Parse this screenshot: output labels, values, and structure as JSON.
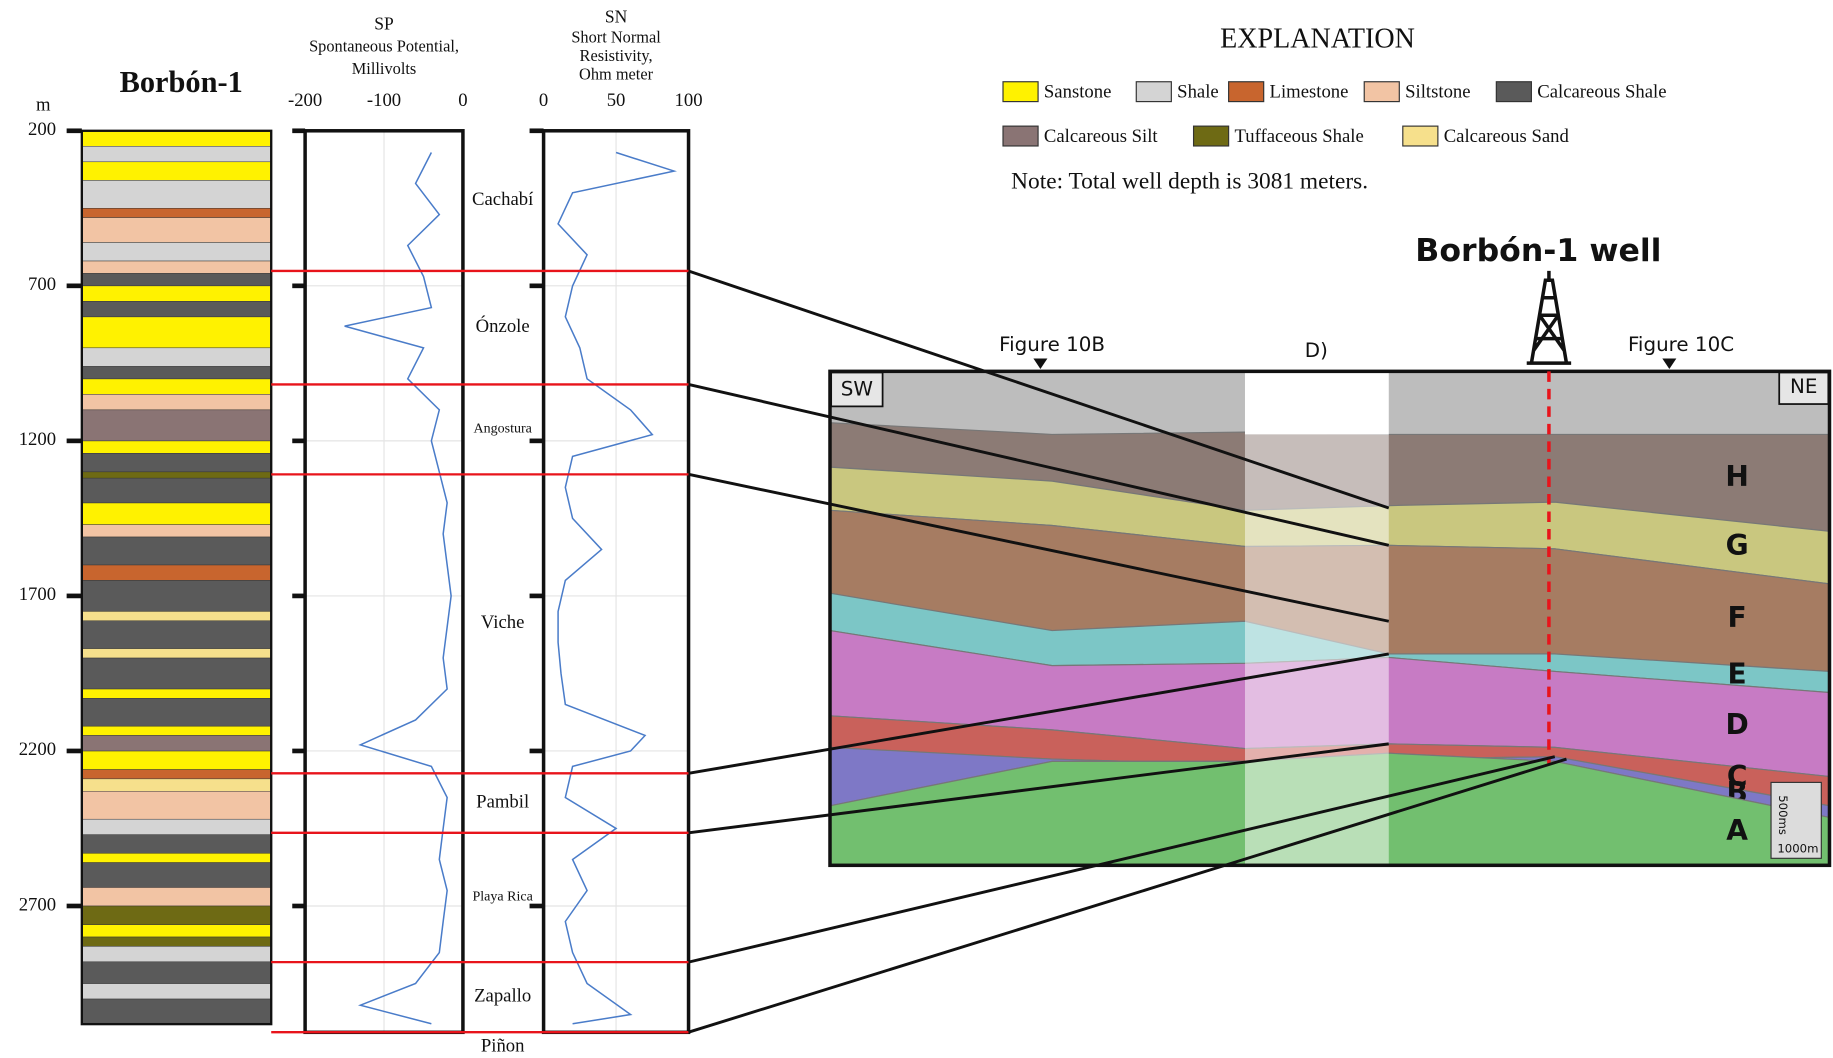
{
  "well_log": {
    "title": "Borbón-1",
    "depth_unit": "m",
    "depth_lim": [
      200,
      3081
    ],
    "depth_ticks": [
      200,
      700,
      1200,
      1700,
      2200,
      2700
    ],
    "lithology": [
      {
        "name": "Sanstone",
        "color": "#fff200",
        "layers": [
          [
            200,
            250
          ],
          [
            300,
            360
          ],
          [
            700,
            750
          ],
          [
            800,
            900
          ],
          [
            1000,
            1050
          ],
          [
            1200,
            1240
          ],
          [
            1400,
            1470
          ],
          [
            2000,
            2030
          ],
          [
            2120,
            2150
          ],
          [
            2200,
            2260
          ],
          [
            2530,
            2560
          ],
          [
            2760,
            2800
          ]
        ]
      },
      {
        "name": "Shale",
        "color": "#d4d4d4",
        "layers": [
          [
            250,
            300
          ],
          [
            360,
            450
          ],
          [
            560,
            620
          ],
          [
            900,
            960
          ],
          [
            2420,
            2470
          ],
          [
            2830,
            2880
          ],
          [
            2950,
            3000
          ]
        ]
      },
      {
        "name": "Limestone",
        "color": "#c8652e",
        "layers": [
          [
            450,
            480
          ],
          [
            1600,
            1650
          ],
          [
            2260,
            2290
          ]
        ]
      },
      {
        "name": "Siltstone",
        "color": "#f2c4a4",
        "layers": [
          [
            480,
            560
          ],
          [
            620,
            660
          ],
          [
            1050,
            1100
          ],
          [
            1470,
            1510
          ],
          [
            2330,
            2420
          ],
          [
            2640,
            2700
          ]
        ]
      },
      {
        "name": "Calcareous Shale",
        "color": "#5a5a5a",
        "layers": [
          [
            660,
            700
          ],
          [
            750,
            800
          ],
          [
            960,
            1000
          ],
          [
            1240,
            1300
          ],
          [
            1320,
            1400
          ],
          [
            1510,
            1600
          ],
          [
            1650,
            1750
          ],
          [
            1780,
            1870
          ],
          [
            1900,
            2000
          ],
          [
            2030,
            2120
          ],
          [
            2470,
            2530
          ],
          [
            2560,
            2640
          ],
          [
            2880,
            2950
          ],
          [
            3000,
            3081
          ]
        ]
      },
      {
        "name": "Calcareous Silt",
        "color": "#8a7474",
        "layers": [
          [
            1100,
            1200
          ],
          [
            2150,
            2200
          ]
        ]
      },
      {
        "name": "Tuffaceous Shale",
        "color": "#6e6a14",
        "layers": [
          [
            1300,
            1320
          ],
          [
            2700,
            2760
          ],
          [
            2800,
            2830
          ]
        ]
      },
      {
        "name": "Calcareous Sand",
        "color": "#f6e08c",
        "layers": [
          [
            1750,
            1780
          ],
          [
            1870,
            1900
          ],
          [
            2290,
            2330
          ]
        ]
      }
    ],
    "sp": {
      "title": "SP",
      "subtitle": [
        "Spontaneous Potential,",
        "Millivolts"
      ],
      "xlim": [
        -200,
        0
      ],
      "xticks": [
        -200,
        -100,
        0
      ],
      "color": "#4a7cc9",
      "depth": [
        270,
        370,
        470,
        570,
        670,
        770,
        830,
        900,
        1000,
        1100,
        1200,
        1300,
        1400,
        1500,
        1600,
        1700,
        1800,
        1900,
        2000,
        2100,
        2180,
        2250,
        2350,
        2450,
        2550,
        2650,
        2750,
        2850,
        2950,
        3020,
        3080
      ],
      "values": [
        -40,
        -60,
        -30,
        -70,
        -50,
        -40,
        -150,
        -50,
        -70,
        -30,
        -40,
        -30,
        -20,
        -25,
        -20,
        -15,
        -20,
        -25,
        -20,
        -60,
        -130,
        -40,
        -20,
        -25,
        -30,
        -20,
        -25,
        -30,
        -60,
        -130,
        -40
      ]
    },
    "sn": {
      "title": "SN",
      "subtitle": [
        "Short Normal",
        "Resistivity,",
        "Ohm meter"
      ],
      "xlim": [
        0,
        100
      ],
      "xticks": [
        0,
        50,
        100
      ],
      "color": "#4a7cc9",
      "depth": [
        270,
        330,
        400,
        500,
        600,
        700,
        800,
        900,
        1000,
        1100,
        1180,
        1250,
        1350,
        1450,
        1550,
        1650,
        1750,
        1850,
        1950,
        2050,
        2150,
        2200,
        2250,
        2350,
        2450,
        2550,
        2650,
        2750,
        2850,
        2950,
        3050,
        3080
      ],
      "values": [
        50,
        90,
        20,
        10,
        30,
        20,
        15,
        25,
        30,
        60,
        75,
        20,
        15,
        20,
        40,
        15,
        10,
        10,
        12,
        15,
        70,
        60,
        20,
        15,
        50,
        20,
        30,
        15,
        20,
        30,
        60,
        20
      ]
    },
    "formations": [
      {
        "name": "Cachabí",
        "top": 200
      },
      {
        "name": "Ónzole",
        "top": 652
      },
      {
        "name": "Angostura",
        "top": 1018
      },
      {
        "name": "Viche",
        "top": 1308
      },
      {
        "name": "Pambil",
        "top": 2272
      },
      {
        "name": "Playa Rica",
        "top": 2464
      },
      {
        "name": "Zapallo",
        "top": 2881
      },
      {
        "name": "Piñon",
        "top": 3107
      }
    ],
    "boundary_color": "#e8141b"
  },
  "explanation": {
    "title": "EXPLANATION",
    "note": "Note: Total well depth is 3081 meters."
  },
  "section": {
    "title": "Borbón-1 well",
    "left": "SW",
    "right": "NE",
    "figure_b": "Figure 10B",
    "panel": "D)",
    "figure_c": "Figure 10C",
    "units": [
      {
        "name": "H",
        "color": "#8c7b75"
      },
      {
        "name": "G",
        "color": "#c9c77f"
      },
      {
        "name": "F",
        "color": "#a67c62"
      },
      {
        "name": "E",
        "color": "#7cc6c6"
      },
      {
        "name": "D",
        "color": "#c77bc4"
      },
      {
        "name": "C",
        "color": "#c9615b"
      },
      {
        "name": "B",
        "color": "#7e78c6"
      },
      {
        "name": "A",
        "color": "#72bf6f"
      }
    ],
    "scale": {
      "vertical": "500ms",
      "horizontal": "1000m"
    }
  }
}
